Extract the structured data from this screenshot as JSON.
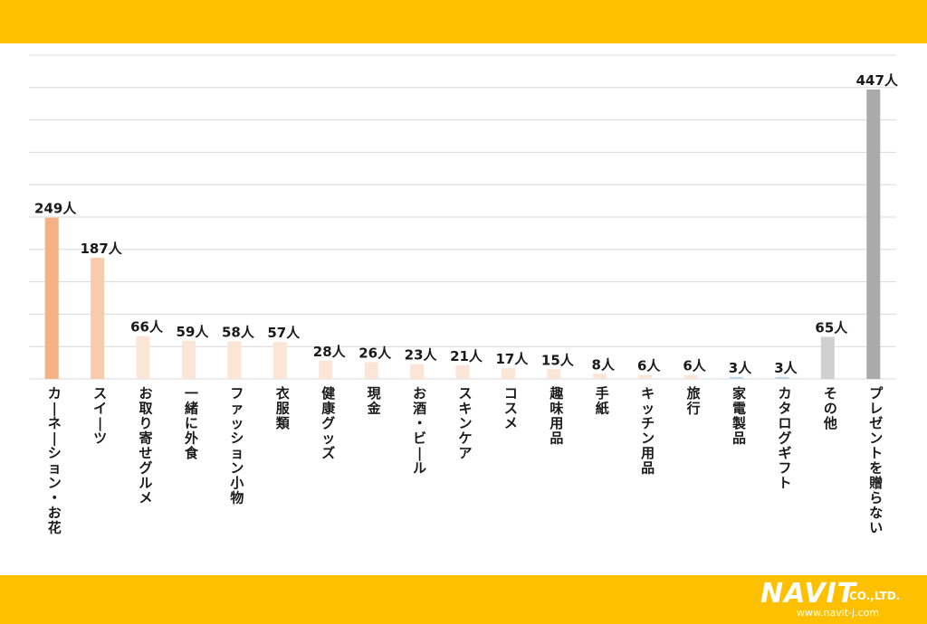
{
  "chart_data": {
    "type": "bar",
    "title": "",
    "xlabel": "",
    "ylabel": "",
    "ylim": [
      0,
      500
    ],
    "grid": true,
    "legend": "none",
    "categories": [
      "カーネーション・お花",
      "スイーツ",
      "お取り寄せグルメ",
      "一緒に外食",
      "ファッション小物",
      "衣服類",
      "健康グッズ",
      "現金",
      "お酒・ビール",
      "スキンケア",
      "コスメ",
      "趣味用品",
      "手紙",
      "キッチン用品",
      "旅行",
      "家電製品",
      "カタログギフト",
      "その他",
      "プレゼントを贈らない"
    ],
    "values": [
      249,
      187,
      66,
      59,
      58,
      57,
      28,
      26,
      23,
      21,
      17,
      15,
      8,
      6,
      6,
      3,
      3,
      65,
      447
    ],
    "value_labels": [
      "249人",
      "187人",
      "66人",
      "59人",
      "58人",
      "57人",
      "28人",
      "26人",
      "23人",
      "21人",
      "17人",
      "15人",
      "8人",
      "6人",
      "6人",
      "3人",
      "3人",
      "65人",
      "447人"
    ],
    "colors": [
      "#f4b183",
      "#f8cbad",
      "#fbe5d6",
      "#fbe5d6",
      "#fbe5d6",
      "#fbe5d6",
      "#fbe5d6",
      "#fbe5d6",
      "#fbe5d6",
      "#fbe5d6",
      "#fbe5d6",
      "#fbe5d6",
      "#fbe5d6",
      "#fbe5d6",
      "#fbe5d6",
      "#bdd7ee",
      "#bdd7ee",
      "#d0d0d0",
      "#aaaaaa"
    ]
  },
  "theme": {
    "band_color": "#ffc000",
    "grid_color": "#d9d9d9"
  },
  "logo": {
    "name": "NAVIT",
    "suffix": "CO.,LTD.",
    "url": "www.navit-j.com"
  }
}
